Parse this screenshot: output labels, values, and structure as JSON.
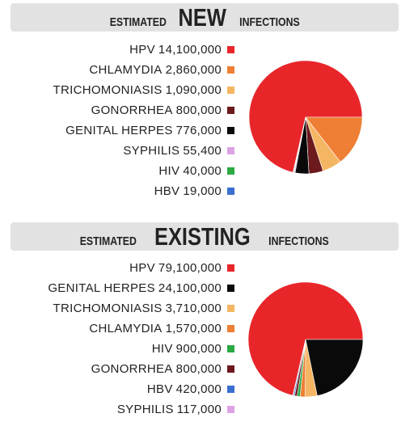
{
  "chart_data": [
    {
      "type": "pie",
      "title_prefix": "ESTIMATED",
      "title_emphasis": "NEW",
      "title_suffix": "INFECTIONS",
      "slices": [
        {
          "label": "HPV",
          "value": 14100000,
          "value_text": "14,100,000",
          "color": "#e8262a"
        },
        {
          "label": "CHLAMYDIA",
          "value": 2860000,
          "value_text": "2,860,000",
          "color": "#ee7f34"
        },
        {
          "label": "TRICHOMONIASIS",
          "value": 1090000,
          "value_text": "1,090,000",
          "color": "#f5b664"
        },
        {
          "label": "GONORRHEA",
          "value": 800000,
          "value_text": "800,000",
          "color": "#6d1a1d"
        },
        {
          "label": "GENITAL HERPES",
          "value": 776000,
          "value_text": "776,000",
          "color": "#0a0a0a"
        },
        {
          "label": "SYPHILIS",
          "value": 55400,
          "value_text": "55,400",
          "color": "#dca2e4"
        },
        {
          "label": "HIV",
          "value": 40000,
          "value_text": "40,000",
          "color": "#2aa944"
        },
        {
          "label": "HBV",
          "value": 19000,
          "value_text": "19,000",
          "color": "#3a6fd0"
        }
      ]
    },
    {
      "type": "pie",
      "title_prefix": "ESTIMATED",
      "title_emphasis": "EXISTING",
      "title_suffix": "INFECTIONS",
      "slices": [
        {
          "label": "HPV",
          "value": 79100000,
          "value_text": "79,100,000",
          "color": "#e8262a"
        },
        {
          "label": "GENITAL HERPES",
          "value": 24100000,
          "value_text": "24,100,000",
          "color": "#0a0a0a"
        },
        {
          "label": "TRICHOMONIASIS",
          "value": 3710000,
          "value_text": "3,710,000",
          "color": "#f5b664"
        },
        {
          "label": "CHLAMYDIA",
          "value": 1570000,
          "value_text": "1,570,000",
          "color": "#ee7f34"
        },
        {
          "label": "HIV",
          "value": 900000,
          "value_text": "900,000",
          "color": "#2aa944"
        },
        {
          "label": "GONORRHEA",
          "value": 800000,
          "value_text": "800,000",
          "color": "#6d1a1d"
        },
        {
          "label": "HBV",
          "value": 420000,
          "value_text": "420,000",
          "color": "#3a6fd0"
        },
        {
          "label": "SYPHILIS",
          "value": 117000,
          "value_text": "117,000",
          "color": "#dca2e4"
        }
      ]
    }
  ]
}
